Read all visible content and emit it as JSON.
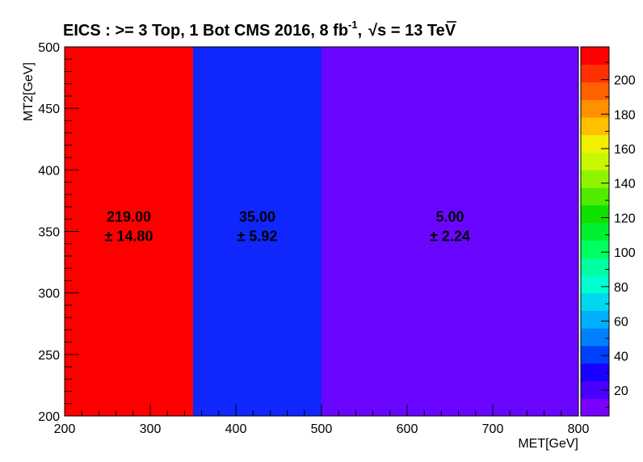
{
  "chart_data": {
    "type": "heatmap",
    "title": {
      "main": "EICS : >= 3 Top, 1 Bot  CMS 2016, 8 fb",
      "sup": "-1",
      "sep": ",",
      "sqrt_s": "s",
      "energy": " = 13 TeV"
    },
    "xlabel": "MET[GeV]",
    "ylabel": "MT2[GeV]",
    "xlim": [
      200,
      800
    ],
    "ylim": [
      200,
      500
    ],
    "x_ticks": [
      "200",
      "300",
      "400",
      "500",
      "600",
      "700",
      "800"
    ],
    "y_ticks": [
      "200",
      "250",
      "300",
      "350",
      "400",
      "450",
      "500"
    ],
    "cells": [
      {
        "x0": 200,
        "x1": 350,
        "y0": 200,
        "y1": 500,
        "value": 219.0,
        "value_label": "219.00",
        "error_label": "± 14.80",
        "color": "#ff0000"
      },
      {
        "x0": 350,
        "x1": 500,
        "y0": 200,
        "y1": 500,
        "value": 35.0,
        "value_label": "35.00",
        "error_label": "± 5.92",
        "color": "#0f26fd"
      },
      {
        "x0": 500,
        "x1": 800,
        "y0": 200,
        "y1": 500,
        "value": 5.0,
        "value_label": "5.00",
        "error_label": "± 2.24",
        "color": "#6a06ff"
      }
    ],
    "colorbar": {
      "zlim": [
        5,
        219
      ],
      "tick_values": [
        20,
        40,
        60,
        80,
        100,
        120,
        140,
        160,
        180,
        200
      ],
      "tick_labels": [
        "20",
        "40",
        "60",
        "80",
        "100",
        "120",
        "140",
        "160",
        "180",
        "200"
      ],
      "colors": [
        "#7a00ff",
        "#4a00ff",
        "#1a00ff",
        "#0040ff",
        "#0080ff",
        "#00b0ff",
        "#00d8f0",
        "#00ffd0",
        "#00ffa0",
        "#00ff60",
        "#00f030",
        "#10e000",
        "#50ec00",
        "#90f400",
        "#c8f800",
        "#f0f000",
        "#ffc000",
        "#ff9000",
        "#ff6000",
        "#ff3000",
        "#ff0000"
      ]
    },
    "grid": false,
    "legend": "none"
  }
}
